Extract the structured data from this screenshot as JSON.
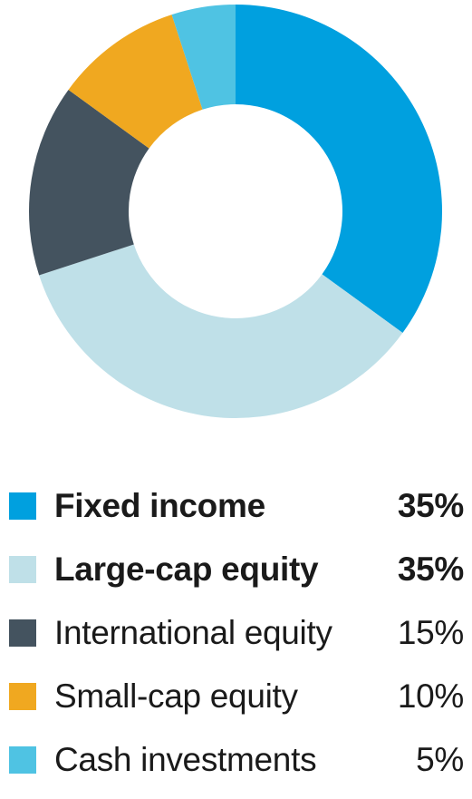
{
  "chart_data": {
    "type": "pie",
    "donut": true,
    "categories": [
      "Fixed income",
      "Large-cap equity",
      "International equity",
      "Small-cap equity",
      "Cash investments"
    ],
    "values": [
      35,
      35,
      15,
      10,
      5
    ],
    "value_labels": [
      "35%",
      "35%",
      "15%",
      "10%",
      "5%"
    ],
    "colors": [
      "#00a0df",
      "#bfe0e8",
      "#44535f",
      "#f0a820",
      "#4fc3e3"
    ],
    "emphasized": [
      true,
      true,
      false,
      false,
      false
    ],
    "title": "",
    "legend_position": "bottom"
  }
}
